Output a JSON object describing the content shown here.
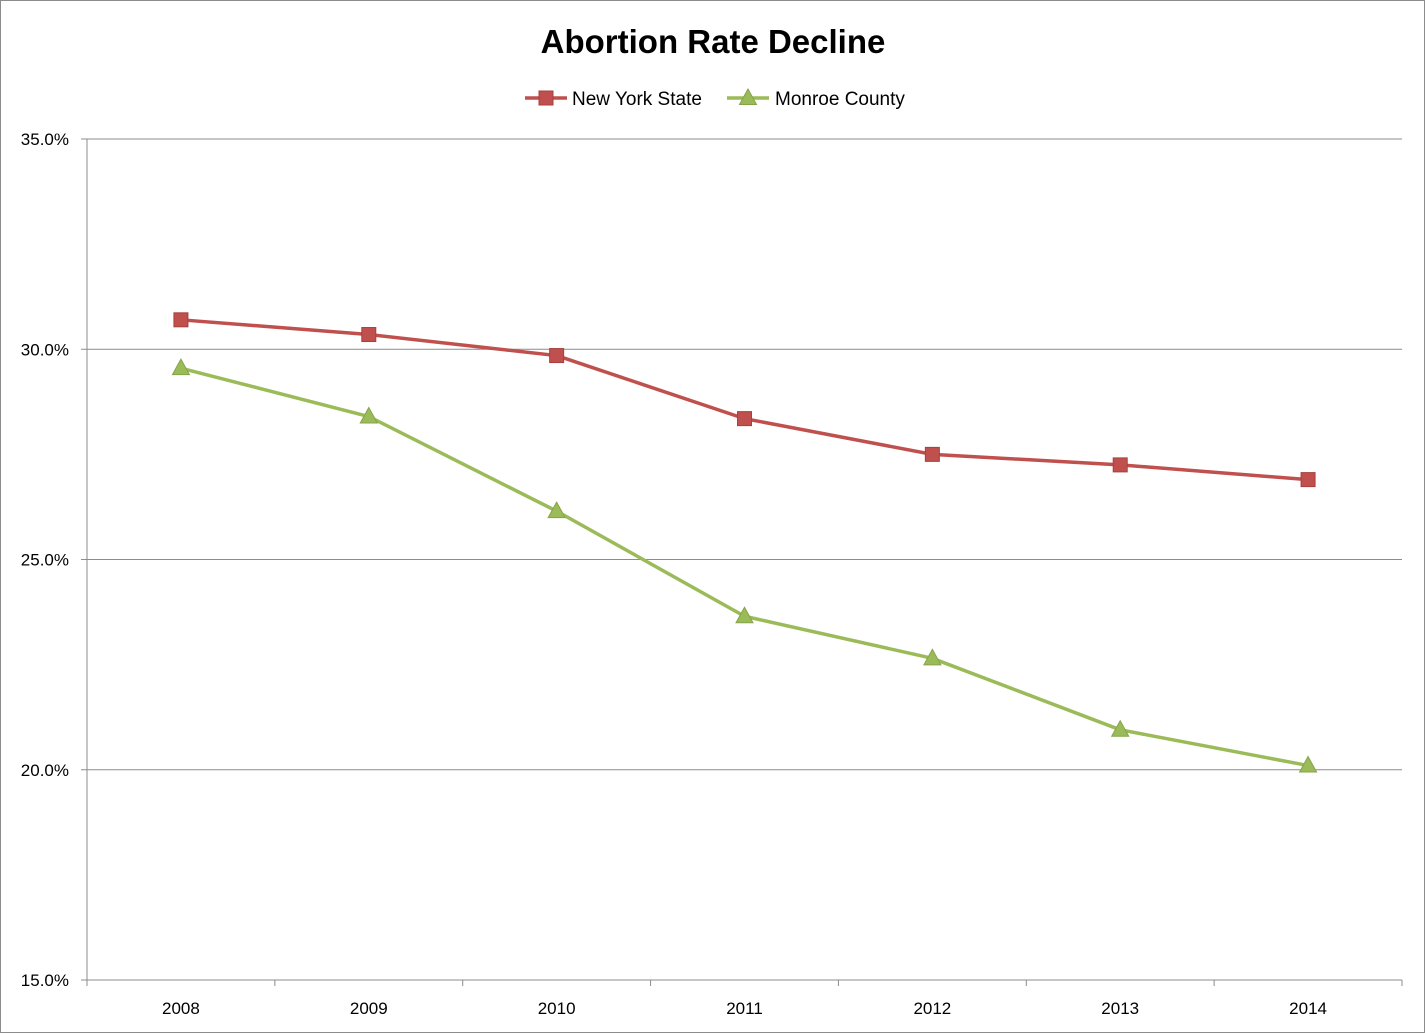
{
  "chart_data": {
    "type": "line",
    "title": "Abortion Rate Decline",
    "xlabel": "",
    "ylabel": "",
    "categories": [
      "2008",
      "2009",
      "2010",
      "2011",
      "2012",
      "2013",
      "2014"
    ],
    "series": [
      {
        "name": "New York State",
        "color": "#c0504d",
        "marker": "square",
        "values": [
          30.7,
          30.35,
          29.85,
          28.35,
          27.5,
          27.25,
          26.9
        ]
      },
      {
        "name": "Monroe County",
        "color": "#9bbb59",
        "marker": "triangle",
        "values": [
          29.55,
          28.4,
          26.15,
          23.65,
          22.65,
          20.95,
          20.1
        ]
      }
    ],
    "ylim": [
      15,
      35
    ],
    "yticks": [
      15,
      20,
      25,
      30,
      35
    ],
    "ytick_labels": [
      "15.0%",
      "20.0%",
      "25.0%",
      "30.0%",
      "35.0%"
    ],
    "grid": "horizontal",
    "legend_position": "top"
  }
}
